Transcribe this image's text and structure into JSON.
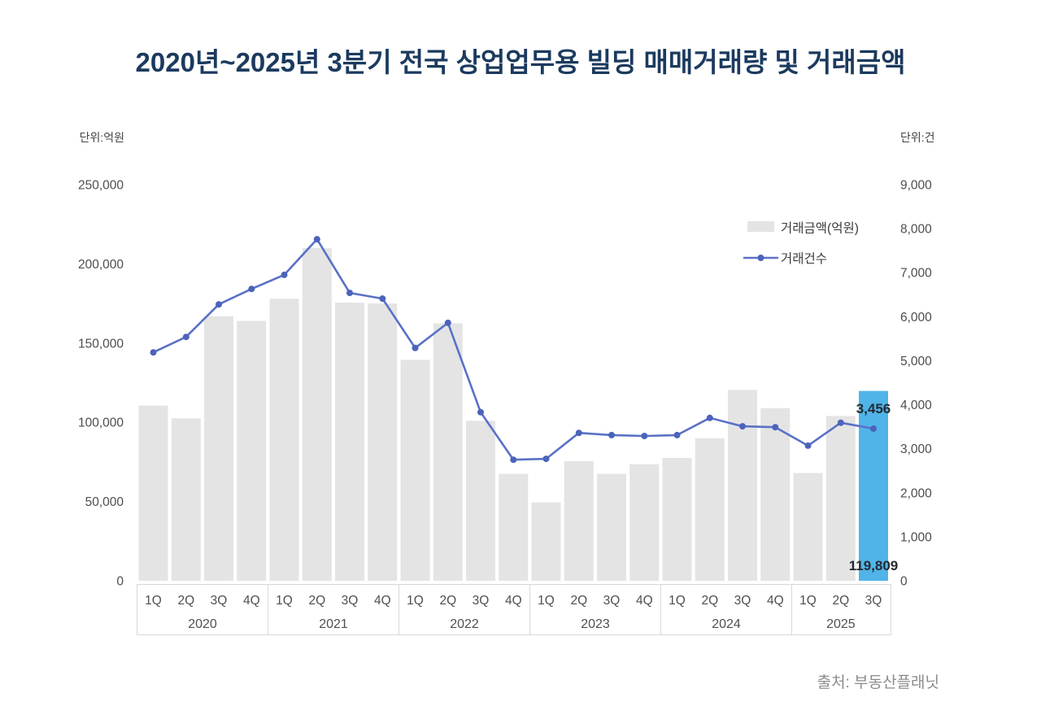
{
  "title": "2020년~2025년 3분기 전국 상업업무용 빌딩 매매거래량 및 거래금액",
  "source": "출처: 부동산플래닛",
  "chart_data": {
    "type": "bar+line",
    "groups": [
      {
        "year": "2020",
        "quarters": [
          "1Q",
          "2Q",
          "3Q",
          "4Q"
        ]
      },
      {
        "year": "2021",
        "quarters": [
          "1Q",
          "2Q",
          "3Q",
          "4Q"
        ]
      },
      {
        "year": "2022",
        "quarters": [
          "1Q",
          "2Q",
          "3Q",
          "4Q"
        ]
      },
      {
        "year": "2023",
        "quarters": [
          "1Q",
          "2Q",
          "3Q",
          "4Q"
        ]
      },
      {
        "year": "2024",
        "quarters": [
          "1Q",
          "2Q",
          "3Q",
          "4Q"
        ]
      },
      {
        "year": "2025",
        "quarters": [
          "1Q",
          "2Q",
          "3Q"
        ]
      }
    ],
    "series": [
      {
        "name": "거래금액(억원)",
        "type": "bar",
        "axis": "left",
        "values": [
          110500,
          102500,
          167000,
          164000,
          178000,
          210000,
          175500,
          175000,
          139500,
          162500,
          101000,
          67500,
          49500,
          75500,
          67500,
          73500,
          77500,
          90000,
          120500,
          109000,
          68000,
          104000,
          119809
        ]
      },
      {
        "name": "거래건수",
        "type": "line",
        "axis": "right",
        "values": [
          5190,
          5540,
          6280,
          6630,
          6950,
          7760,
          6540,
          6410,
          5290,
          5860,
          3830,
          2750,
          2770,
          3360,
          3310,
          3290,
          3310,
          3700,
          3510,
          3490,
          3070,
          3590,
          3456
        ]
      }
    ],
    "left_axis": {
      "unit": "단위:억원",
      "min": 0,
      "max": 250000,
      "step": 50000,
      "ticks": [
        "0",
        "50,000",
        "100,000",
        "150,000",
        "200,000",
        "250,000"
      ]
    },
    "right_axis": {
      "unit": "단위:건",
      "min": 0,
      "max": 9000,
      "step": 1000,
      "ticks": [
        "0",
        "1,000",
        "2,000",
        "3,000",
        "4,000",
        "5,000",
        "6,000",
        "7,000",
        "8,000",
        "9,000"
      ]
    },
    "legend": [
      {
        "label": "거래금액(억원)",
        "type": "bar"
      },
      {
        "label": "거래건수",
        "type": "line"
      }
    ],
    "highlight_index": 22,
    "annotations": [
      {
        "name": "count-label-2025-3Q",
        "series": "count",
        "index": 22,
        "text": "3,456"
      },
      {
        "name": "amount-label-2025-3Q",
        "series": "amount",
        "index": 22,
        "text": "119,809"
      }
    ],
    "grid": false,
    "legend_position": "top-right",
    "colors": {
      "title": "#1b3a5e",
      "bar": "#e4e4e5",
      "highlight": "#50b4e9",
      "line": "#5a71c6",
      "dot": "#4c63bb",
      "tick": "#4d4d4d",
      "axisline": "#d8d8d8",
      "annotation": "#24292f",
      "source": "#8c8c8c"
    }
  }
}
